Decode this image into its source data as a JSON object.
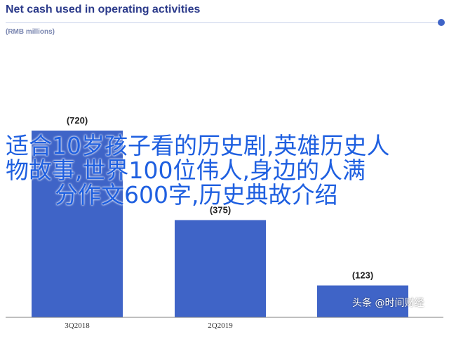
{
  "chart_data": {
    "type": "bar",
    "title": "Net cash used in operating activities",
    "unit": "(RMB millions)",
    "categories": [
      "3Q2018",
      "",
      "2Q2019",
      "",
      ""
    ],
    "values": [
      720,
      null,
      375,
      null,
      123
    ],
    "value_labels": [
      "(720)",
      "",
      "(375)",
      "",
      "(123)"
    ],
    "ylim": [
      0,
      800
    ],
    "grid": false,
    "bar_color": "#3f64c7"
  },
  "overlay": {
    "lines": [
      "适合10岁孩子看的历史剧,英雄历史人",
      "物故事,世界100位伟人,身边的人满",
      "分作文600字,历史典故介绍"
    ]
  },
  "watermark": {
    "text": "头条 @时间财经"
  },
  "colors": {
    "title": "#2b3a8a",
    "bar": "#3f64c7",
    "overlay_text": "#1e5fe0"
  }
}
